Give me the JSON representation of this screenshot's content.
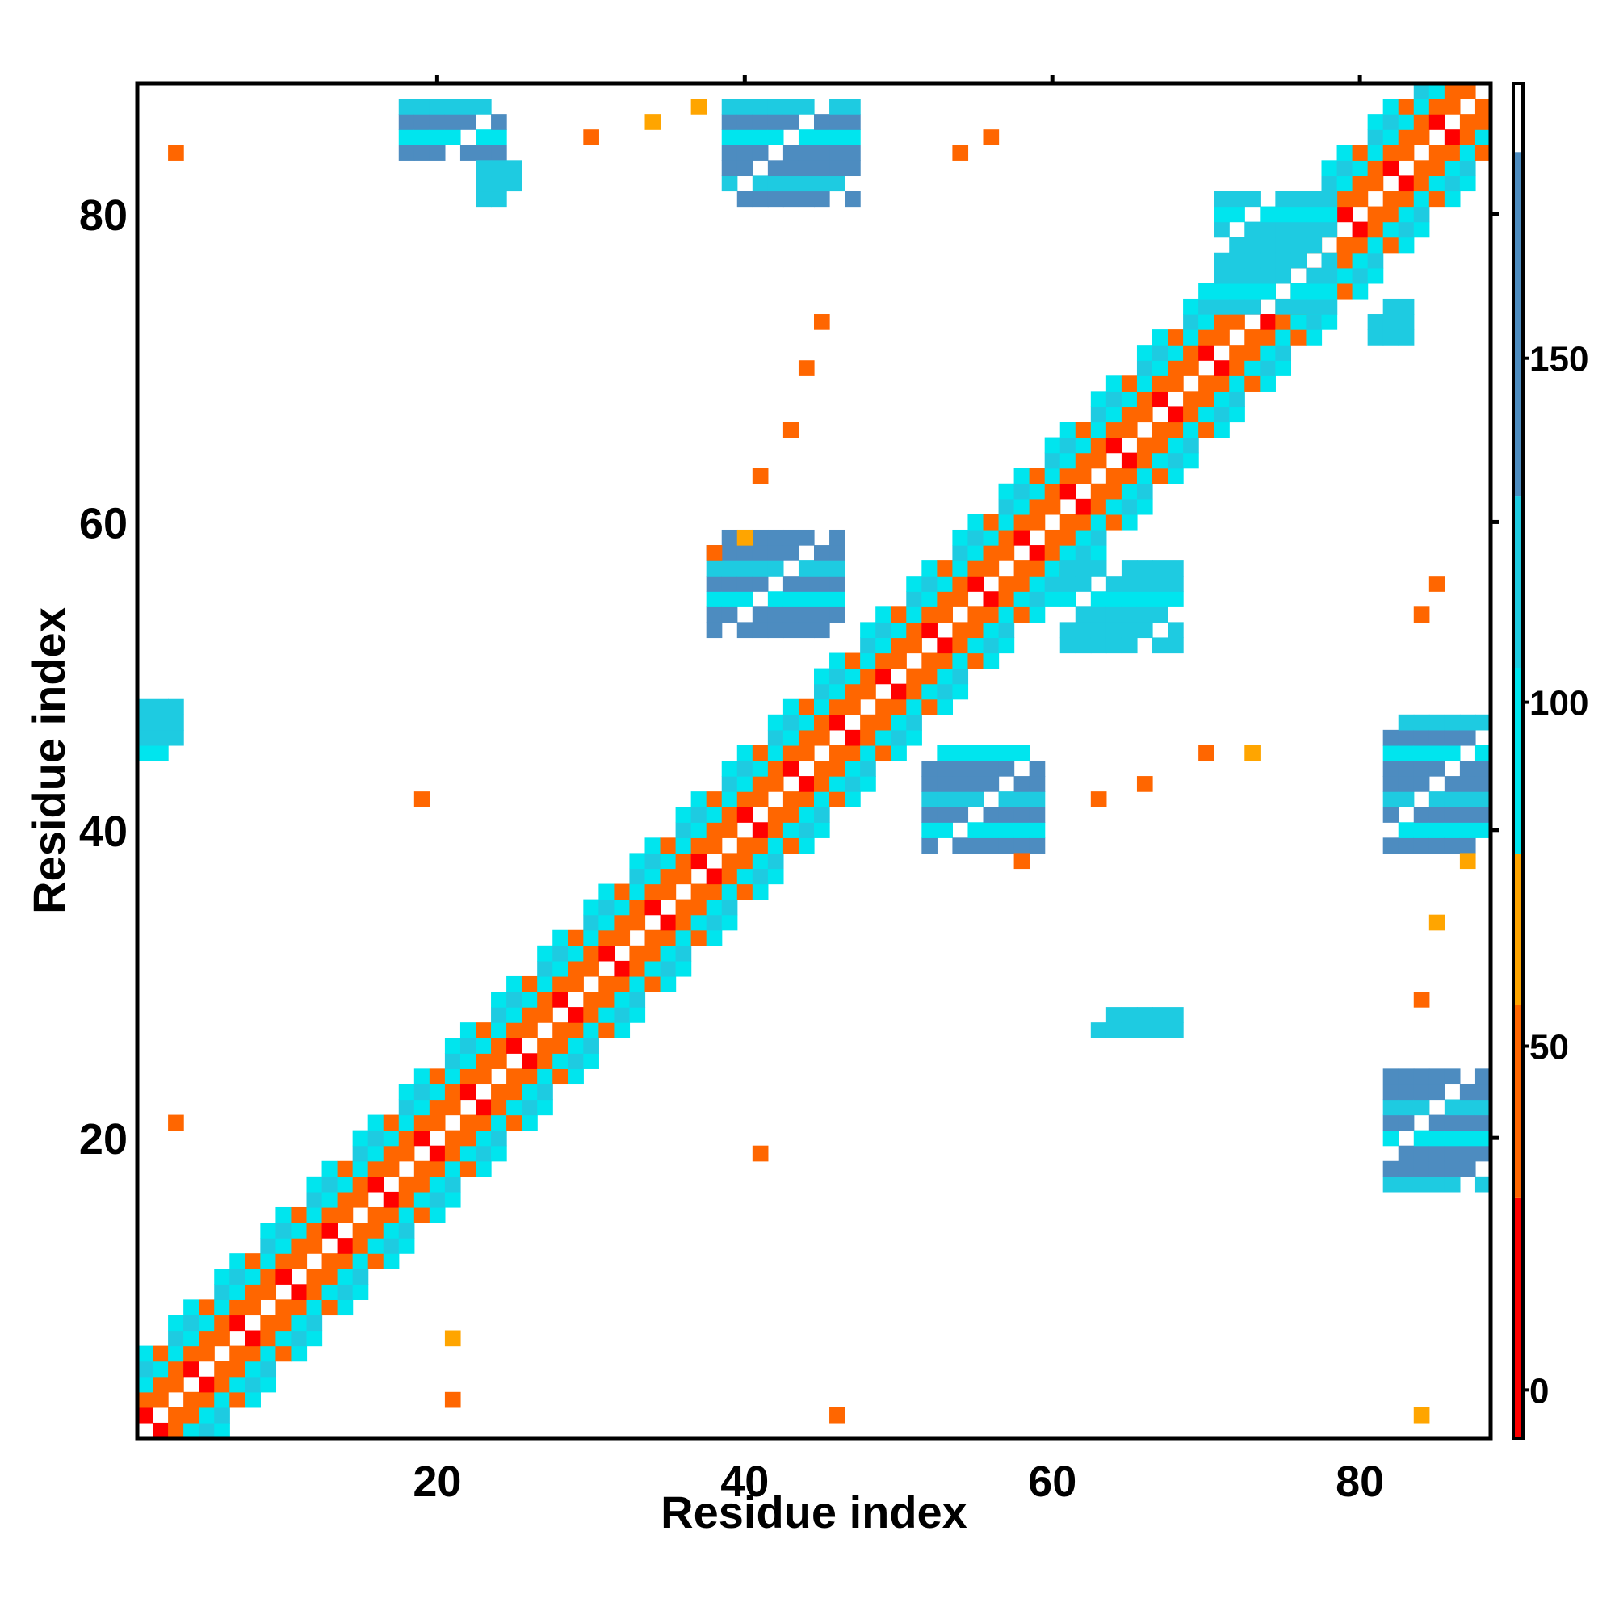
{
  "chart_data": {
    "type": "heatmap",
    "title": "",
    "xlabel": "Residue index",
    "ylabel": "Residue index",
    "xlim": [
      1,
      88
    ],
    "ylim": [
      1,
      88
    ],
    "x_ticks": [
      20,
      40,
      60,
      80
    ],
    "y_ticks": [
      20,
      40,
      60,
      80
    ],
    "colorbar": {
      "ticks": [
        0,
        50,
        100,
        150
      ],
      "range": [
        -7,
        190
      ],
      "segments": [
        {
          "from": -7,
          "to": 28,
          "color": "#ff0000"
        },
        {
          "from": 28,
          "to": 56,
          "color": "#ff6600"
        },
        {
          "from": 56,
          "to": 78,
          "color": "#ffa500"
        },
        {
          "from": 78,
          "to": 105,
          "color": "#00e5ee"
        },
        {
          "from": 105,
          "to": 130,
          "color": "#1ecbe1"
        },
        {
          "from": 130,
          "to": 180,
          "color": "#4d8cc0"
        },
        {
          "from": 180,
          "to": 190,
          "color": "#ffffff"
        }
      ]
    },
    "value_encoding": "distance matrix; color bins map to value ranges shown on colorbar",
    "diagonal_band": {
      "half_width": 5,
      "pattern": "alternating red/orange/cyan near diagonal"
    },
    "off_diagonal_blocks": [
      {
        "x": [
          18,
          24
        ],
        "y": [
          84,
          87
        ],
        "value": 145
      },
      {
        "x": [
          23,
          25
        ],
        "y": [
          81,
          83
        ],
        "value": 115
      },
      {
        "x": [
          39,
          47
        ],
        "y": [
          81,
          87
        ],
        "value": 140
      },
      {
        "x": [
          38,
          46
        ],
        "y": [
          53,
          59
        ],
        "value": 145
      },
      {
        "x": [
          52,
          59
        ],
        "y": [
          39,
          45
        ],
        "value": 145
      },
      {
        "x": [
          82,
          88
        ],
        "y": [
          39,
          47
        ],
        "value": 140
      },
      {
        "x": [
          82,
          88
        ],
        "y": [
          17,
          24
        ],
        "value": 140
      },
      {
        "x": [
          1,
          3
        ],
        "y": [
          45,
          48
        ],
        "value": 110
      },
      {
        "x": [
          63,
          68
        ],
        "y": [
          27,
          28
        ],
        "value": 110
      },
      {
        "x": [
          61,
          68
        ],
        "y": [
          52,
          57
        ],
        "value": 110
      },
      {
        "x": [
          71,
          78
        ],
        "y": [
          74,
          81
        ],
        "value": 120
      },
      {
        "x": [
          81,
          83
        ],
        "y": [
          72,
          74
        ],
        "value": 125
      }
    ],
    "scattered_contacts": [
      {
        "x": 3,
        "y": 84,
        "value": 50
      },
      {
        "x": 30,
        "y": 85,
        "value": 50
      },
      {
        "x": 34,
        "y": 86,
        "value": 65
      },
      {
        "x": 37,
        "y": 87,
        "value": 70
      },
      {
        "x": 54,
        "y": 84,
        "value": 50
      },
      {
        "x": 56,
        "y": 85,
        "value": 50
      },
      {
        "x": 45,
        "y": 73,
        "value": 50
      },
      {
        "x": 44,
        "y": 70,
        "value": 50
      },
      {
        "x": 43,
        "y": 66,
        "value": 50
      },
      {
        "x": 41,
        "y": 63,
        "value": 50
      },
      {
        "x": 40,
        "y": 59,
        "value": 70
      },
      {
        "x": 38,
        "y": 58,
        "value": 50
      },
      {
        "x": 19,
        "y": 42,
        "value": 50
      },
      {
        "x": 21,
        "y": 7,
        "value": 70
      },
      {
        "x": 21,
        "y": 3,
        "value": 50
      },
      {
        "x": 3,
        "y": 21,
        "value": 50
      },
      {
        "x": 41,
        "y": 19,
        "value": 50
      },
      {
        "x": 46,
        "y": 2,
        "value": 50
      },
      {
        "x": 84,
        "y": 2,
        "value": 65
      },
      {
        "x": 85,
        "y": 34,
        "value": 65
      },
      {
        "x": 87,
        "y": 38,
        "value": 70
      },
      {
        "x": 84,
        "y": 29,
        "value": 50
      },
      {
        "x": 84,
        "y": 54,
        "value": 50
      },
      {
        "x": 85,
        "y": 56,
        "value": 50
      },
      {
        "x": 63,
        "y": 42,
        "value": 50
      },
      {
        "x": 66,
        "y": 43,
        "value": 50
      },
      {
        "x": 70,
        "y": 45,
        "value": 50
      },
      {
        "x": 73,
        "y": 45,
        "value": 70
      },
      {
        "x": 58,
        "y": 38,
        "value": 50
      }
    ]
  }
}
